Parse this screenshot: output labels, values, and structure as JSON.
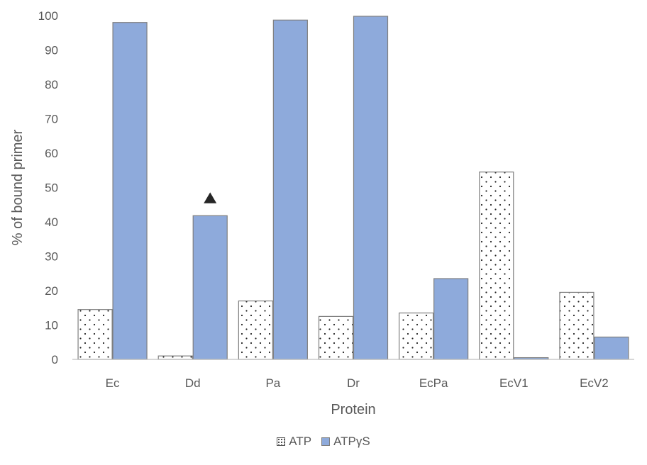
{
  "chart_data": {
    "type": "bar",
    "categories": [
      "Ec",
      "Dd",
      "Pa",
      "Dr",
      "EcPa",
      "EcV1",
      "EcV2"
    ],
    "series": [
      {
        "name": "ATP",
        "values": [
          14.5,
          1.0,
          17.0,
          12.5,
          13.5,
          54.5,
          19.5
        ],
        "color": "#ffffff",
        "pattern": "dots"
      },
      {
        "name": "ATPγS",
        "values": [
          98,
          41.8,
          98.7,
          99.8,
          23.5,
          0.5,
          6.5
        ],
        "color": "#8eaadb"
      }
    ],
    "xlabel": "Protein",
    "ylabel": "% of bound primer",
    "ylim": [
      0,
      100
    ],
    "yticks": [
      0,
      10,
      20,
      30,
      40,
      50,
      60,
      70,
      80,
      90,
      100
    ],
    "grid": false,
    "legend_position": "bottom",
    "annotations": [
      {
        "shape": "triangle",
        "category": "Dd",
        "series": "ATPγS",
        "y": 47
      }
    ]
  }
}
